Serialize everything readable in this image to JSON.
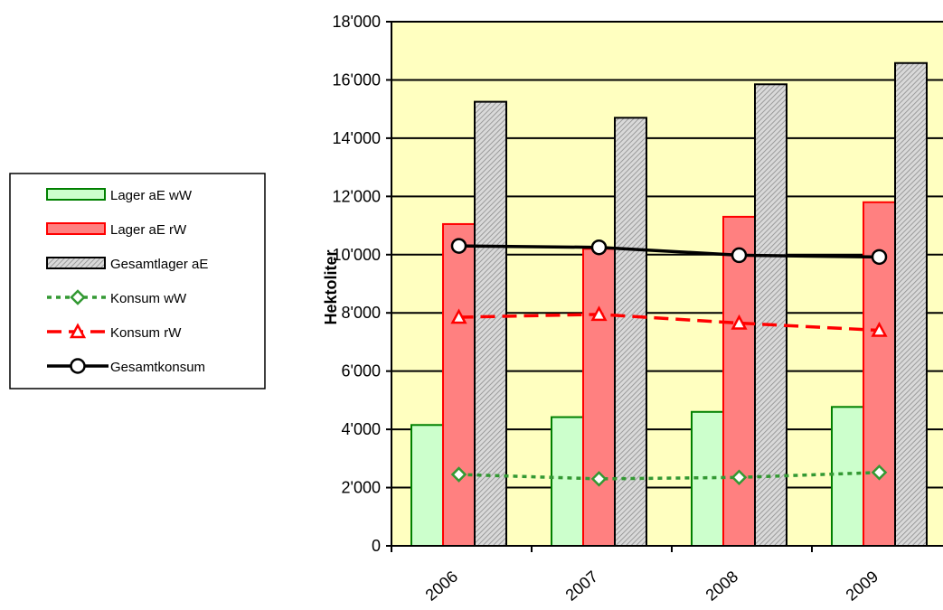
{
  "chart_data": {
    "type": "bar",
    "title": "",
    "xlabel": "",
    "ylabel": "Hektoliter",
    "ylim": [
      0,
      18000
    ],
    "ytick_step": 2000,
    "ytick_labels": [
      "0",
      "2'000",
      "4'000",
      "6'000",
      "8'000",
      "10'000",
      "12'000",
      "14'000",
      "16'000",
      "18'000"
    ],
    "categories": [
      "2006",
      "2007",
      "2008",
      "2009"
    ],
    "grid": true,
    "plot_background": "#ffffc0",
    "legend_position": "left",
    "bar_series": [
      {
        "name": "Lager aE wW",
        "values": [
          4150,
          4420,
          4600,
          4770
        ],
        "fill": "#ccffcc",
        "stroke": "#008000"
      },
      {
        "name": "Lager aE rW",
        "values": [
          11050,
          10200,
          11300,
          11800
        ],
        "fill": "#ff8080",
        "stroke": "#ff0000"
      },
      {
        "name": "Gesamtlager aE",
        "values": [
          15250,
          14700,
          15850,
          16580
        ],
        "fill": "#c0c0c0",
        "stroke": "#000000",
        "pattern": "hatch"
      }
    ],
    "line_series": [
      {
        "name": "Konsum wW",
        "values": [
          2450,
          2300,
          2350,
          2520
        ],
        "color": "#339933",
        "dash": "dotted",
        "marker": "diamond"
      },
      {
        "name": "Konsum rW",
        "values": [
          7850,
          7950,
          7650,
          7400
        ],
        "color": "#ff0000",
        "dash": "dashed",
        "marker": "triangle"
      },
      {
        "name": "Gesamtkonsum",
        "values": [
          10300,
          10250,
          9980,
          9920
        ],
        "color": "#000000",
        "dash": "solid",
        "marker": "circle"
      }
    ]
  }
}
